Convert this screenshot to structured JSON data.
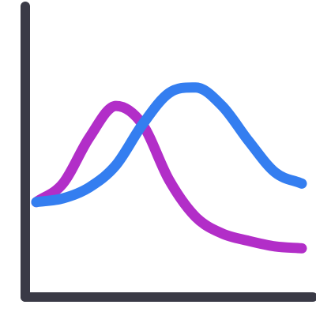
{
  "colors": {
    "background": "#ffffff",
    "axis": "#3a3a46",
    "series_purple": "#b22ec8",
    "series_blue": "#347ef0"
  },
  "chart_data": {
    "type": "line",
    "title": "",
    "xlabel": "",
    "ylabel": "",
    "grid": false,
    "legend": "none",
    "xlim": [
      0,
      10
    ],
    "ylim": [
      0,
      10
    ],
    "series": [
      {
        "color": "#b22ec8",
        "x": [
          0.0,
          1.0,
          2.0,
          3.0,
          4.0,
          5.0,
          6.0,
          7.0,
          8.0,
          9.0,
          10.0
        ],
        "y": [
          3.0,
          4.0,
          6.5,
          8.2,
          7.2,
          4.2,
          2.2,
          1.3,
          0.9,
          0.6,
          0.5
        ]
      },
      {
        "color": "#347ef0",
        "x": [
          0.0,
          1.0,
          2.0,
          3.0,
          4.0,
          5.0,
          6.0,
          7.0,
          8.0,
          9.0,
          10.0
        ],
        "y": [
          3.0,
          3.2,
          3.8,
          5.0,
          7.2,
          8.9,
          9.2,
          8.2,
          6.3,
          4.6,
          4.0
        ]
      }
    ]
  }
}
